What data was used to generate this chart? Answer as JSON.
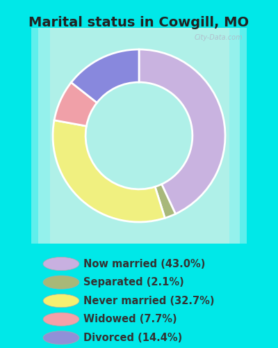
{
  "title": "Marital status in Cowgill, MO",
  "categories": [
    "Now married",
    "Separated",
    "Never married",
    "Widowed",
    "Divorced"
  ],
  "values": [
    43.0,
    2.1,
    32.7,
    7.7,
    14.4
  ],
  "colors": [
    "#c9b3e0",
    "#a8b87a",
    "#f0f080",
    "#f0a0a8",
    "#8888dd"
  ],
  "legend_colors": [
    "#c8b0e0",
    "#a8b878",
    "#f5f070",
    "#f5a0a8",
    "#9090d8"
  ],
  "legend_labels": [
    "Now married (43.0%)",
    "Separated (2.1%)",
    "Never married (32.7%)",
    "Widowed (7.7%)",
    "Divorced (14.4%)"
  ],
  "background_outer": "#00e8e8",
  "title_fontsize": 14,
  "legend_fontsize": 10.5,
  "watermark": "City-Data.com",
  "donut_width": 0.38,
  "startangle": 90
}
